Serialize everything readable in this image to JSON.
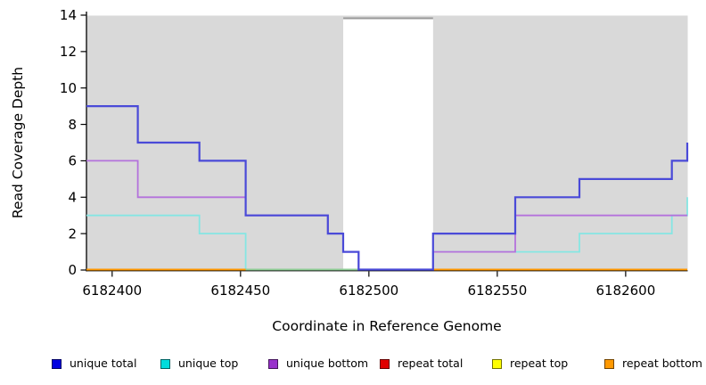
{
  "figure": {
    "background": "#ffffff",
    "axis_color": "#000000",
    "tick_label_fontsize": 15,
    "legend_fontsize": 12.5
  },
  "chart_data": {
    "type": "line",
    "subtype": "step-post",
    "title": "",
    "xlabel": "Coordinate in Reference Genome",
    "ylabel": "Read Coverage Depth",
    "xlim": [
      6182390,
      6182624
    ],
    "ylim": [
      0,
      14
    ],
    "x_ticks": [
      6182400,
      6182450,
      6182500,
      6182550,
      6182600
    ],
    "y_ticks": [
      0,
      2,
      4,
      6,
      8,
      10,
      12,
      14
    ],
    "grid": false,
    "legend_position": "bottom",
    "plot_background": "#d9d9d9",
    "masked_region": {
      "x_start": 6182490,
      "x_end": 6182525,
      "fill": "#ffffff",
      "border": "#999999"
    },
    "series": [
      {
        "name": "unique total",
        "line_color": "#4a4ad8",
        "swatch_color": "#0000e0",
        "width": 2.2,
        "points": [
          [
            6182390,
            9
          ],
          [
            6182410,
            7
          ],
          [
            6182434,
            6
          ],
          [
            6182452,
            3
          ],
          [
            6182484,
            2
          ],
          [
            6182490,
            1
          ],
          [
            6182496,
            0
          ],
          [
            6182525,
            2
          ],
          [
            6182557,
            4
          ],
          [
            6182582,
            5
          ],
          [
            6182618,
            6
          ],
          [
            6182624,
            7
          ]
        ]
      },
      {
        "name": "unique top",
        "line_color": "#85e6e3",
        "swatch_color": "#00dcdc",
        "width": 1.8,
        "points": [
          [
            6182390,
            3
          ],
          [
            6182434,
            2
          ],
          [
            6182452,
            0
          ],
          [
            6182525,
            1
          ],
          [
            6182582,
            2
          ],
          [
            6182618,
            3
          ],
          [
            6182624,
            4
          ]
        ]
      },
      {
        "name": "unique bottom",
        "line_color": "#b472dc",
        "swatch_color": "#9932cc",
        "width": 1.8,
        "points": [
          [
            6182390,
            6
          ],
          [
            6182410,
            4
          ],
          [
            6182452,
            3
          ],
          [
            6182484,
            2
          ],
          [
            6182490,
            1
          ],
          [
            6182496,
            0
          ],
          [
            6182525,
            1
          ],
          [
            6182557,
            3
          ]
        ]
      },
      {
        "name": "repeat total",
        "line_color": "#dd0000",
        "swatch_color": "#e00000",
        "width": 1.5,
        "points": [
          [
            6182390,
            0
          ]
        ]
      },
      {
        "name": "repeat top",
        "line_color": "#ffff00",
        "swatch_color": "#ffff00",
        "width": 1.5,
        "points": [
          [
            6182390,
            0
          ]
        ]
      },
      {
        "name": "repeat bottom",
        "line_color": "#ff9800",
        "swatch_color": "#ff9900",
        "width": 2.0,
        "points": [
          [
            6182390,
            0
          ]
        ]
      }
    ],
    "baseline_blend_segment": {
      "x_start": 6182452,
      "x_end": 6182496,
      "color": "#8fcd96",
      "note": "unique top at depth 0 blending with repeat lines"
    }
  }
}
